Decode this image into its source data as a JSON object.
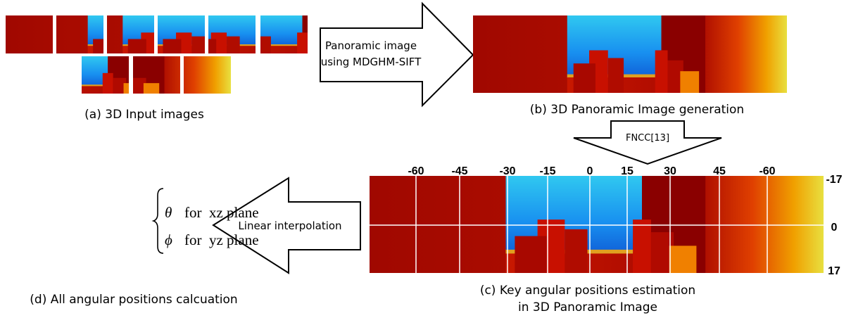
{
  "a_caption": "(a) 3D Input images",
  "arrow_b_label": [
    "Panoramic image",
    "using MDGHM-SIFT"
  ],
  "b_caption": "(b) 3D Panoramic Image generation",
  "arrow_c_label": "FNCC[13]",
  "angle_labels": [
    "-60",
    "-45",
    "-30",
    "-15",
    "0",
    "15",
    "30",
    "45",
    "-60"
  ],
  "elevation_labels": [
    "-17",
    "0",
    "17"
  ],
  "arrow_d_label": "Linear interpolation",
  "formula": [
    {
      "symbol": "θ",
      "text": "for  xz plane"
    },
    {
      "symbol": "ϕ",
      "text": "for  yz plane"
    }
  ],
  "c_caption": [
    "(c) Key angular positions estimation",
    "in 3D Panoramic Image"
  ],
  "d_caption": "(d) All angular positions calcuation"
}
